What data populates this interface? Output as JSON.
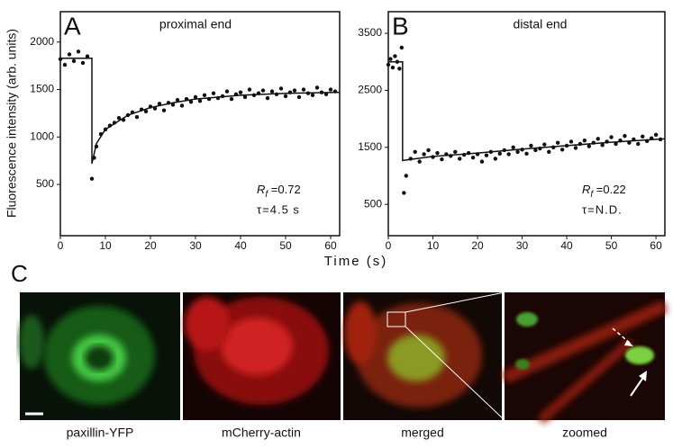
{
  "chart_data": [
    {
      "type": "scatter",
      "panel": "A",
      "title": "proximal end",
      "ylabel": "Fluorescence intensity (arb. units)",
      "xlabel": "Time (s)",
      "color": "#111111",
      "x": [
        0,
        1,
        2,
        3,
        4,
        5,
        6,
        7,
        7.5,
        8,
        9,
        10,
        11,
        12,
        13,
        14,
        15,
        16,
        17,
        18,
        19,
        20,
        21,
        22,
        23,
        24,
        25,
        26,
        27,
        28,
        29,
        30,
        31,
        32,
        33,
        34,
        35,
        36,
        37,
        38,
        39,
        40,
        41,
        42,
        43,
        44,
        45,
        46,
        47,
        48,
        49,
        50,
        51,
        52,
        53,
        54,
        55,
        56,
        57,
        58,
        59,
        60,
        61
      ],
      "y": [
        1820,
        1760,
        1870,
        1800,
        1900,
        1780,
        1850,
        560,
        780,
        900,
        1030,
        1080,
        1120,
        1150,
        1200,
        1180,
        1230,
        1260,
        1210,
        1290,
        1270,
        1320,
        1300,
        1350,
        1280,
        1360,
        1340,
        1390,
        1330,
        1400,
        1370,
        1420,
        1380,
        1440,
        1400,
        1460,
        1410,
        1430,
        1480,
        1400,
        1450,
        1470,
        1420,
        1500,
        1440,
        1460,
        1490,
        1410,
        1480,
        1450,
        1510,
        1430,
        1470,
        1490,
        1420,
        1500,
        1460,
        1440,
        1520,
        1470,
        1450,
        1500,
        1480
      ],
      "fit": {
        "x": [
          0,
          7,
          7,
          8,
          10,
          15,
          20,
          25,
          30,
          40,
          50,
          62
        ],
        "y": [
          1830,
          1830,
          720,
          930,
          1080,
          1230,
          1310,
          1360,
          1400,
          1440,
          1460,
          1470
        ]
      },
      "xlim": [
        0,
        62
      ],
      "ylim": [
        -40,
        2320
      ],
      "xticks": [
        0,
        10,
        20,
        30,
        40,
        50,
        60
      ],
      "yticks": [
        500,
        1000,
        1500,
        2000
      ],
      "rf": {
        "symbol": "R",
        "subscript": "f",
        "text": " =0.72"
      },
      "tau": "τ=4.5 s"
    },
    {
      "type": "scatter",
      "panel": "B",
      "title": "distal end",
      "color": "#111111",
      "x": [
        0,
        0.5,
        1,
        1.5,
        2,
        2.5,
        3,
        3.5,
        4,
        5,
        6,
        7,
        8,
        9,
        10,
        11,
        12,
        13,
        14,
        15,
        16,
        17,
        18,
        19,
        20,
        21,
        22,
        23,
        24,
        25,
        26,
        27,
        28,
        29,
        30,
        31,
        32,
        33,
        34,
        35,
        36,
        37,
        38,
        39,
        40,
        41,
        42,
        43,
        44,
        45,
        46,
        47,
        48,
        49,
        50,
        51,
        52,
        53,
        54,
        55,
        56,
        57,
        58,
        59,
        60,
        61
      ],
      "y": [
        2950,
        3050,
        2900,
        3100,
        3000,
        2880,
        3250,
        700,
        1000,
        1300,
        1420,
        1250,
        1380,
        1450,
        1330,
        1400,
        1290,
        1380,
        1350,
        1420,
        1300,
        1370,
        1400,
        1320,
        1380,
        1250,
        1360,
        1420,
        1300,
        1390,
        1450,
        1380,
        1500,
        1420,
        1460,
        1390,
        1530,
        1450,
        1480,
        1550,
        1420,
        1500,
        1580,
        1460,
        1530,
        1600,
        1490,
        1560,
        1620,
        1520,
        1580,
        1650,
        1540,
        1600,
        1680,
        1560,
        1620,
        1700,
        1580,
        1640,
        1560,
        1690,
        1610,
        1660,
        1720,
        1640
      ],
      "fit": {
        "x": [
          0,
          3.2,
          3.2,
          10,
          20,
          30,
          40,
          50,
          62
        ],
        "y": [
          3000,
          3000,
          1270,
          1340,
          1400,
          1470,
          1530,
          1590,
          1650
        ]
      },
      "xlim": [
        0,
        62
      ],
      "ylim": [
        -50,
        3880
      ],
      "xticks": [
        0,
        10,
        20,
        30,
        40,
        50,
        60
      ],
      "yticks": [
        500,
        1500,
        2500,
        3500
      ],
      "rf": {
        "symbol": "R",
        "subscript": "f",
        "text": " =0.22"
      },
      "tau": "τ=N.D."
    }
  ],
  "panel_c": {
    "label": "C",
    "images": [
      "paxillin-YFP",
      "mCherry-actin",
      "merged",
      "zoomed"
    ]
  }
}
